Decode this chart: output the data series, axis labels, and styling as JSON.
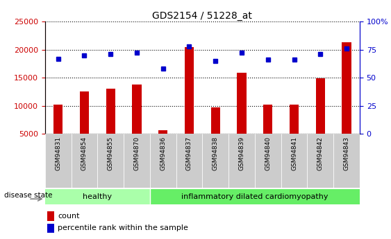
{
  "title": "GDS2154 / 51228_at",
  "samples": [
    "GSM94831",
    "GSM94854",
    "GSM94855",
    "GSM94870",
    "GSM94836",
    "GSM94837",
    "GSM94838",
    "GSM94839",
    "GSM94840",
    "GSM94841",
    "GSM94842",
    "GSM94843"
  ],
  "counts": [
    10200,
    12600,
    13100,
    13800,
    5700,
    20400,
    9700,
    15900,
    10200,
    10200,
    14900,
    21300
  ],
  "percentiles": [
    67,
    70,
    71,
    72,
    58,
    78,
    65,
    72,
    66,
    66,
    71,
    76
  ],
  "healthy_count": 4,
  "ylim_left": [
    5000,
    25000
  ],
  "ylim_right": [
    0,
    100
  ],
  "yticks_left": [
    5000,
    10000,
    15000,
    20000,
    25000
  ],
  "yticks_right": [
    0,
    25,
    50,
    75,
    100
  ],
  "bar_color": "#cc0000",
  "dot_color": "#0000cc",
  "healthy_bg": "#aaffaa",
  "disease_bg": "#66ee66",
  "label_bg": "#cccccc",
  "legend_count_label": "count",
  "legend_pct_label": "percentile rank within the sample",
  "disease_state_label": "disease state",
  "healthy_label": "healthy",
  "disease_label": "inflammatory dilated cardiomyopathy",
  "grid_color": "#000000",
  "figwidth": 5.63,
  "figheight": 3.45,
  "dpi": 100
}
